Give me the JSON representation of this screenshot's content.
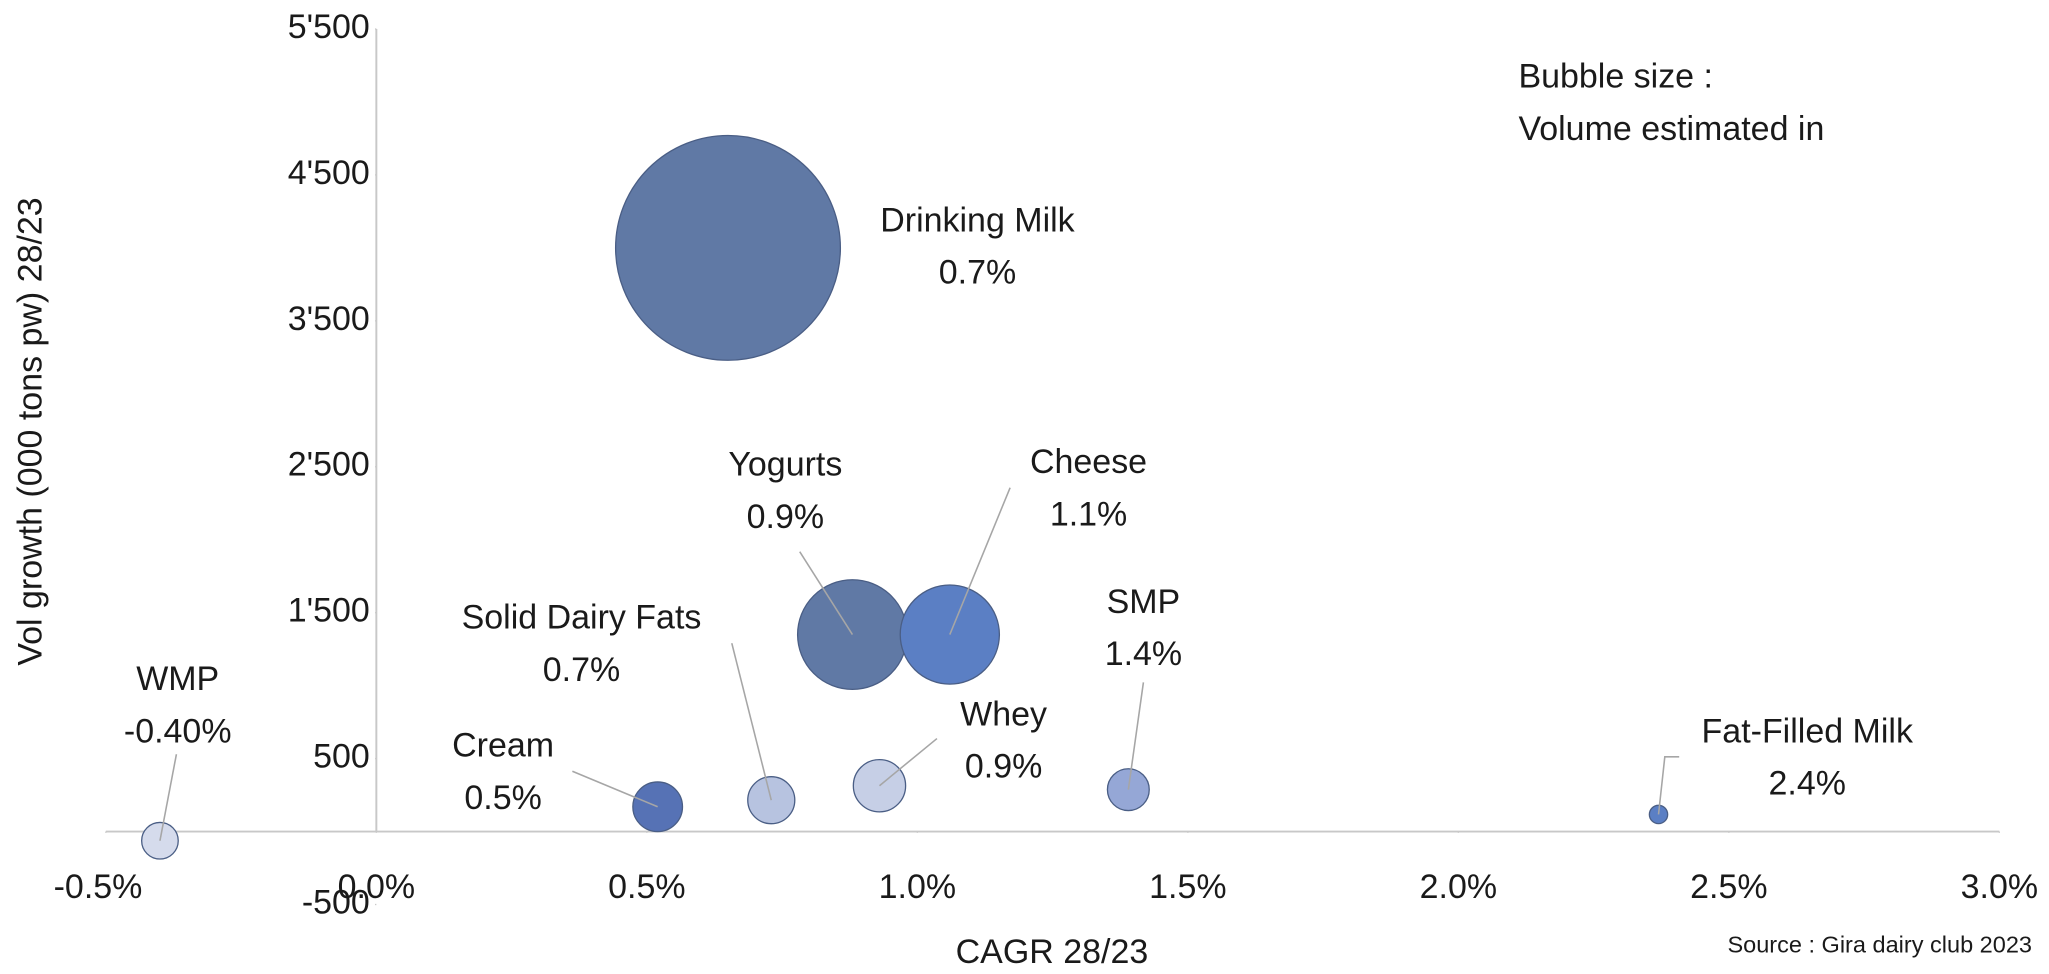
{
  "chart_data": {
    "type": "bubble",
    "x_label": "CAGR 28/23",
    "y_label": "Vol growth (000 tons pw) 28/23",
    "annotations": [
      "Bubble size :",
      "Volume estimated in"
    ],
    "source": "Source : Gira dairy club 2023",
    "xlim": [
      -0.5,
      3.0
    ],
    "xticks": [
      {
        "value": -0.5,
        "label": "-0.5%"
      },
      {
        "value": 0.0,
        "label": "0.0%"
      },
      {
        "value": 0.5,
        "label": "0.5%"
      },
      {
        "value": 1.0,
        "label": "1.0%"
      },
      {
        "value": 1.5,
        "label": "1.5%"
      },
      {
        "value": 2.0,
        "label": "2.0%"
      },
      {
        "value": 2.5,
        "label": "2.5%"
      },
      {
        "value": 3.0,
        "label": "3.0%"
      }
    ],
    "ylim": [
      -500,
      5500
    ],
    "yticks": [
      {
        "value": -500,
        "label": "-500"
      },
      {
        "value": 500,
        "label": "500"
      },
      {
        "value": 1500,
        "label": "1'500"
      },
      {
        "value": 2500,
        "label": "2'500"
      },
      {
        "value": 3500,
        "label": "3'500"
      },
      {
        "value": 4500,
        "label": "4'500"
      },
      {
        "value": 5500,
        "label": "5'500"
      }
    ],
    "grid": false,
    "series": [
      {
        "name": "Drinking Milk",
        "color": "#6079a5",
        "x": 0.65,
        "y": 4000,
        "size": 7400,
        "label": "0.7%"
      },
      {
        "name": "Yogurts",
        "color": "#6079a5",
        "x": 0.88,
        "y": 1350,
        "size": 1760,
        "label": "0.9%"
      },
      {
        "name": "Cheese",
        "color": "#5b7fc4",
        "x": 1.06,
        "y": 1350,
        "size": 1440,
        "label": "1.1%"
      },
      {
        "name": "Solid Dairy Fats",
        "color": "#b7c3e0",
        "x": 0.73,
        "y": 215,
        "size": 324,
        "label": "0.7%"
      },
      {
        "name": "Cream",
        "color": "#5672b5",
        "x": 0.52,
        "y": 170,
        "size": 361,
        "label": "0.5%"
      },
      {
        "name": "Whey",
        "color": "#c6cfe6",
        "x": 0.93,
        "y": 314,
        "size": 400,
        "label": "0.9%"
      },
      {
        "name": "SMP",
        "color": "#95a7d6",
        "x": 1.39,
        "y": 287,
        "size": 256,
        "label": "1.4%"
      },
      {
        "name": "Fat-Filled Milk",
        "color": "#5b7fc4",
        "x": 2.37,
        "y": 117,
        "size": 49,
        "label": "2.4%"
      },
      {
        "name": "WMP",
        "color": "#d5dbec",
        "x": -0.4,
        "y": -63,
        "size": 196,
        "label": "-0.40%"
      }
    ]
  }
}
